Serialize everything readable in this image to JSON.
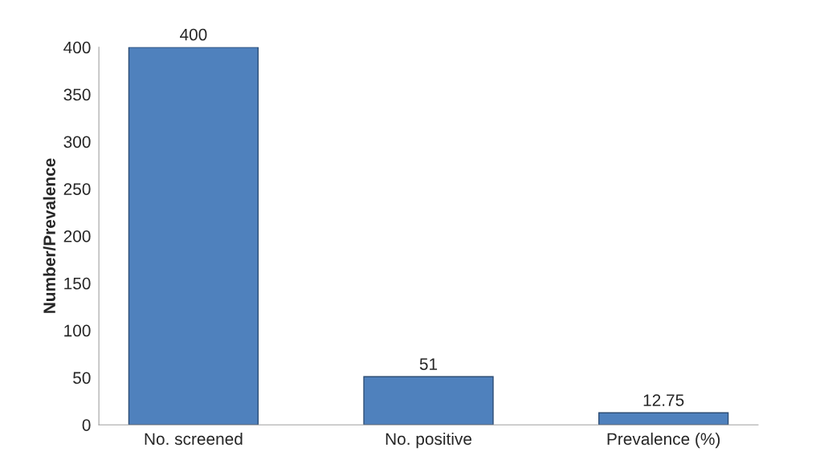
{
  "chart_data": {
    "type": "bar",
    "ylabel": "Number/Prevalence",
    "categories": [
      "No. screened",
      "No. positive",
      "Prevalence (%)"
    ],
    "values": [
      400,
      51,
      12.75
    ],
    "color": "#4f81bd",
    "ylim": [
      0,
      400
    ],
    "yticks": [
      0,
      50,
      100,
      150,
      200,
      250,
      300,
      350,
      400
    ],
    "data_labels": true,
    "grid": false,
    "legend": false
  }
}
